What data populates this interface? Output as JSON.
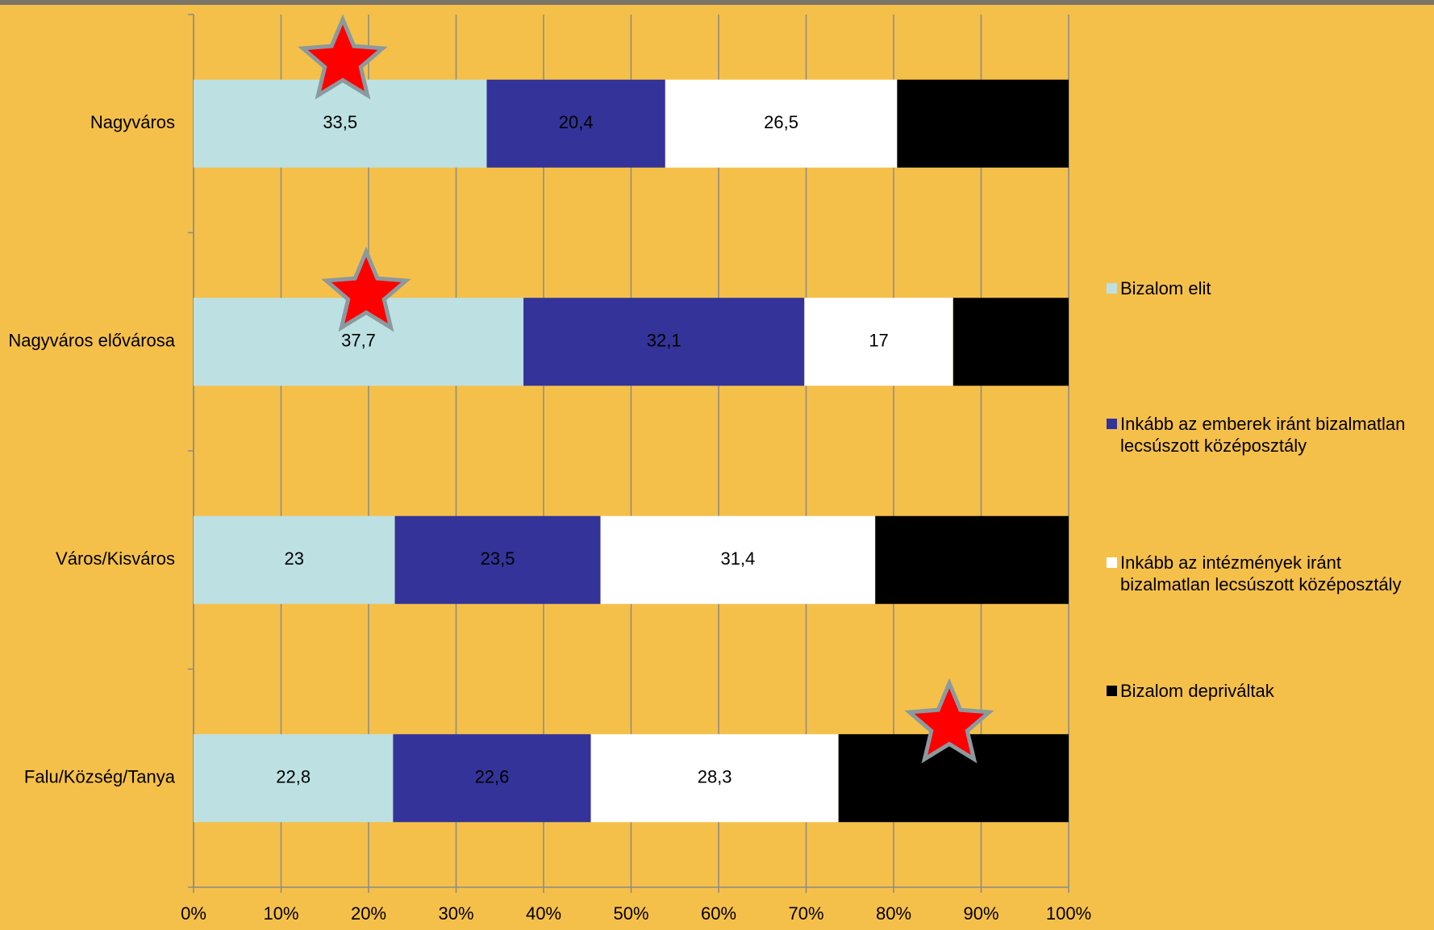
{
  "chart_data": {
    "type": "stacked-bar-horizontal",
    "categories": [
      "Nagyváros",
      "Nagyváros elővárosa",
      "Város/Kisváros",
      "Falu/Község/Tanya"
    ],
    "series": [
      {
        "name": "Bizalom elit",
        "color": "#bde0e3",
        "data_labels": true,
        "values": [
          33.5,
          37.7,
          23,
          22.8
        ],
        "value_labels": [
          "33,5",
          "37,7",
          "23",
          "22,8"
        ]
      },
      {
        "name": "Inkább az emberek iránt bizalmatlan lecsúszott középosztály",
        "color": "#333399",
        "data_labels": true,
        "values": [
          20.4,
          32.1,
          23.5,
          22.6
        ],
        "value_labels": [
          "20,4",
          "32,1",
          "23,5",
          "22,6"
        ]
      },
      {
        "name": "Inkább az intézmények iránt bizalmatlan lecsúszott középosztály",
        "color": "#ffffff",
        "data_labels": true,
        "values": [
          26.5,
          17,
          31.4,
          28.3
        ],
        "value_labels": [
          "26,5",
          "17",
          "31,4",
          "28,3"
        ]
      },
      {
        "name": "Bizalom depriváltak",
        "color": "#000000",
        "data_labels": false,
        "values": [
          19.6,
          13.2,
          22.1,
          26.3
        ]
      }
    ],
    "xlim": [
      0,
      100
    ],
    "xticks": [
      {
        "value": 0,
        "label": "0%"
      },
      {
        "value": 10,
        "label": "10%"
      },
      {
        "value": 20,
        "label": "20%"
      },
      {
        "value": 30,
        "label": "30%"
      },
      {
        "value": 40,
        "label": "40%"
      },
      {
        "value": 50,
        "label": "50%"
      },
      {
        "value": 60,
        "label": "60%"
      },
      {
        "value": 70,
        "label": "70%"
      },
      {
        "value": 80,
        "label": "80%"
      },
      {
        "value": 90,
        "label": "90%"
      },
      {
        "value": 100,
        "label": "100%"
      }
    ],
    "grid": true
  }
}
